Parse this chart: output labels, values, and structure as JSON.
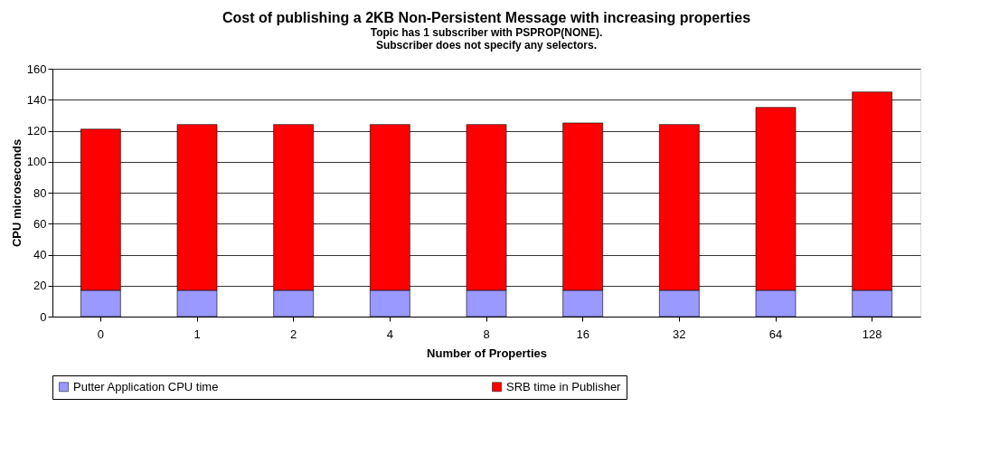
{
  "chart_data": {
    "type": "bar",
    "title": "Cost of publishing a 2KB Non-Persistent Message with increasing properties",
    "subtitle": [
      "Topic has 1 subscriber with PSPROP(NONE).",
      "Subscriber does not specify any selectors."
    ],
    "xlabel": "Number of Properties",
    "ylabel": "CPU microseconds",
    "categories": [
      "0",
      "1",
      "2",
      "4",
      "8",
      "16",
      "32",
      "64",
      "128"
    ],
    "stacked": true,
    "series": [
      {
        "name": "Putter Application CPU time",
        "color": "#9999ff",
        "values": [
          17,
          17,
          17,
          17,
          17,
          17,
          17,
          17,
          17
        ]
      },
      {
        "name": "SRB time in Publisher",
        "color": "#ff0000",
        "values": [
          104,
          107,
          107,
          107,
          107,
          108,
          107,
          118,
          128
        ]
      }
    ],
    "ylim": [
      0,
      160
    ],
    "yticks": [
      0,
      20,
      40,
      60,
      80,
      100,
      120,
      140,
      160
    ],
    "grid": "y",
    "legend": "bottom"
  }
}
